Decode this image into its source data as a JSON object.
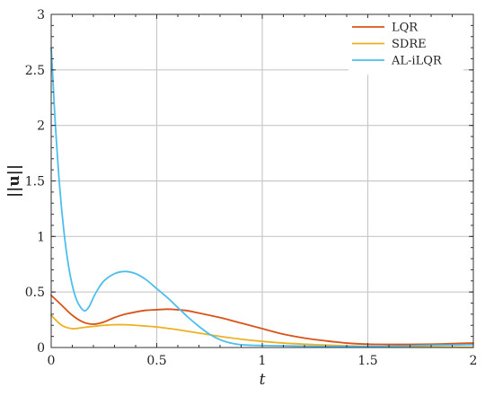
{
  "chart_data": {
    "type": "line",
    "title": "",
    "xlabel": "t",
    "ylabel": "||u||",
    "xlim": [
      0,
      2
    ],
    "ylim": [
      0,
      3
    ],
    "xticks": [
      0,
      0.5,
      1,
      1.5,
      2
    ],
    "xtick_labels": [
      "0",
      "0.5",
      "1",
      "1.5",
      "2"
    ],
    "yticks": [
      0,
      0.5,
      1,
      1.5,
      2,
      2.5,
      3
    ],
    "ytick_labels": [
      "0",
      "0.5",
      "1",
      "1.5",
      "2",
      "2.5",
      "3"
    ],
    "grid": true,
    "legend_position": "top-right",
    "series": [
      {
        "name": "LQR",
        "color": "#d95319",
        "x": [
          0,
          0.05,
          0.1,
          0.15,
          0.2,
          0.25,
          0.3,
          0.35,
          0.4,
          0.45,
          0.5,
          0.55,
          0.6,
          0.65,
          0.7,
          0.8,
          0.9,
          1.0,
          1.1,
          1.2,
          1.3,
          1.4,
          1.5,
          1.6,
          1.7,
          1.8,
          1.9,
          2.0
        ],
        "y": [
          0.47,
          0.38,
          0.29,
          0.23,
          0.21,
          0.23,
          0.27,
          0.3,
          0.32,
          0.335,
          0.34,
          0.345,
          0.34,
          0.33,
          0.31,
          0.27,
          0.22,
          0.17,
          0.12,
          0.085,
          0.06,
          0.04,
          0.03,
          0.028,
          0.028,
          0.03,
          0.035,
          0.04
        ]
      },
      {
        "name": "SDRE",
        "color": "#edb120",
        "x": [
          0,
          0.05,
          0.1,
          0.15,
          0.2,
          0.25,
          0.3,
          0.35,
          0.4,
          0.5,
          0.6,
          0.7,
          0.8,
          0.9,
          1.0,
          1.1,
          1.2,
          1.3,
          1.4,
          1.5,
          1.6,
          1.7,
          1.8,
          1.9,
          2.0
        ],
        "y": [
          0.29,
          0.2,
          0.17,
          0.18,
          0.19,
          0.2,
          0.205,
          0.205,
          0.2,
          0.185,
          0.16,
          0.13,
          0.1,
          0.075,
          0.055,
          0.04,
          0.03,
          0.022,
          0.015,
          0.01,
          0.007,
          0.005,
          0.004,
          0.003,
          0.002
        ]
      },
      {
        "name": "AL-iLQR",
        "color": "#4dbeee",
        "x": [
          0,
          0.01,
          0.02,
          0.04,
          0.06,
          0.08,
          0.1,
          0.12,
          0.14,
          0.16,
          0.18,
          0.2,
          0.22,
          0.25,
          0.3,
          0.35,
          0.4,
          0.45,
          0.5,
          0.55,
          0.6,
          0.65,
          0.7,
          0.75,
          0.8,
          0.85,
          0.9,
          0.95,
          1.0,
          1.1,
          1.2,
          1.3,
          1.4,
          1.5,
          1.6,
          1.7,
          1.8,
          1.9,
          2.0
        ],
        "y": [
          2.7,
          2.35,
          2.0,
          1.45,
          1.05,
          0.76,
          0.56,
          0.43,
          0.36,
          0.33,
          0.37,
          0.45,
          0.52,
          0.6,
          0.665,
          0.685,
          0.665,
          0.61,
          0.53,
          0.45,
          0.36,
          0.27,
          0.19,
          0.12,
          0.07,
          0.04,
          0.025,
          0.02,
          0.018,
          0.015,
          0.012,
          0.01,
          0.01,
          0.01,
          0.012,
          0.015,
          0.02,
          0.022,
          0.025
        ]
      }
    ]
  }
}
